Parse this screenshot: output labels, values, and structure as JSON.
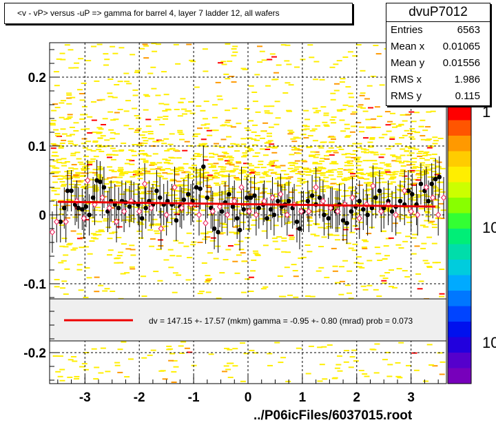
{
  "title_text": "<v - vP>       versus  -uP =>  gamma for barrel 4, layer 7 ladder 12, all wafers",
  "stats": {
    "name": "dvuP7012",
    "rows": [
      {
        "label": "Entries",
        "value": "6563"
      },
      {
        "label": "Mean x",
        "value": "0.01065"
      },
      {
        "label": "Mean y",
        "value": "0.01556"
      },
      {
        "label": "RMS x",
        "value": "1.986"
      },
      {
        "label": "RMS y",
        "value": "0.115"
      }
    ]
  },
  "legend_text": "dv =  147.15 +- 17.57 (mkm) gamma =   -0.95 +-  0.80 (mrad) prob = 0.073",
  "footer": "../P06icFiles/6037015.root",
  "palette_labels": [
    "1",
    "10",
    "10"
  ],
  "colors": {
    "fit_line": "#ee0000",
    "open_marker": "#ee3366",
    "fill_yellow": "#ffee00",
    "fill_orange": "#ff9900",
    "fill_red": "#ff0000"
  },
  "chart_data": {
    "type": "scatter",
    "xlim": [
      -3.65,
      3.65
    ],
    "ylim": [
      -0.245,
      0.25
    ],
    "xticks": [
      -3,
      -2,
      -1,
      0,
      1,
      2,
      3
    ],
    "yticks": [
      -0.2,
      -0.1,
      0,
      0.1,
      0.2
    ],
    "xtick_labels": [
      "-3",
      "-2",
      "-1",
      "0",
      "1",
      "2",
      "3"
    ],
    "ytick_labels": [
      "-0.2",
      "-0.1",
      "0",
      "0.1",
      "0.2"
    ],
    "grid": true,
    "fit_line": {
      "x": [
        -3.5,
        3.45
      ],
      "y": [
        0.019,
        0.012
      ]
    },
    "series": [
      {
        "marker": "filled-circle",
        "points": [
          [
            -3.45,
            -0.01,
            0.03
          ],
          [
            -3.38,
            0.01,
            0.03
          ],
          [
            -3.32,
            0.035,
            0.03
          ],
          [
            -3.25,
            0.035,
            0.03
          ],
          [
            -3.18,
            0.015,
            0.03
          ],
          [
            -3.12,
            0.01,
            0.03
          ],
          [
            -3.05,
            0.008,
            0.03
          ],
          [
            -2.98,
            0.012,
            0.03
          ],
          [
            -2.92,
            0.0,
            0.03
          ],
          [
            -2.85,
            0.025,
            0.03
          ],
          [
            -2.78,
            0.05,
            0.03
          ],
          [
            -2.72,
            0.048,
            0.03
          ],
          [
            -2.65,
            0.04,
            0.03
          ],
          [
            -2.58,
            0.005,
            0.03
          ],
          [
            -2.52,
            0.02,
            0.03
          ],
          [
            -2.45,
            0.015,
            0.03
          ],
          [
            -2.38,
            0.01,
            0.03
          ],
          [
            -2.32,
            0.02,
            0.03
          ],
          [
            -2.25,
            0.018,
            0.03
          ],
          [
            -2.18,
            0.012,
            0.03
          ],
          [
            -2.1,
            0.018,
            0.03
          ],
          [
            -2.02,
            0.015,
            0.03
          ],
          [
            -1.95,
            -0.005,
            0.03
          ],
          [
            -1.88,
            0.01,
            0.03
          ],
          [
            -1.82,
            0.02,
            0.03
          ],
          [
            -1.75,
            0.015,
            0.03
          ],
          [
            -1.68,
            0.035,
            0.03
          ],
          [
            -1.62,
            0.025,
            0.03
          ],
          [
            -1.55,
            0.015,
            0.03
          ],
          [
            -1.48,
            0.02,
            0.03
          ],
          [
            -1.4,
            0.015,
            0.03
          ],
          [
            -1.32,
            -0.008,
            0.03
          ],
          [
            -1.25,
            0.012,
            0.03
          ],
          [
            -1.18,
            0.022,
            0.03
          ],
          [
            -1.1,
            0.03,
            0.03
          ],
          [
            -1.02,
            0.02,
            0.03
          ],
          [
            -0.95,
            0.04,
            0.03
          ],
          [
            -0.88,
            0.038,
            0.03
          ],
          [
            -0.82,
            0.07,
            0.03
          ],
          [
            -0.75,
            0.025,
            0.03
          ],
          [
            -0.68,
            0.01,
            0.03
          ],
          [
            -0.62,
            -0.02,
            0.03
          ],
          [
            -0.55,
            -0.025,
            0.03
          ],
          [
            -0.48,
            0.005,
            0.03
          ],
          [
            -0.42,
            0.018,
            0.03
          ],
          [
            -0.35,
            0.03,
            0.03
          ],
          [
            -0.28,
            0.012,
            0.03
          ],
          [
            -0.2,
            -0.005,
            0.03
          ],
          [
            -0.15,
            -0.022,
            0.03
          ],
          [
            -0.08,
            0.008,
            0.03
          ],
          [
            -0.02,
            0.025,
            0.03
          ],
          [
            0.05,
            0.025,
            0.03
          ],
          [
            0.12,
            0.028,
            0.03
          ],
          [
            0.2,
            0.01,
            0.03
          ],
          [
            0.28,
            0.015,
            0.03
          ],
          [
            0.35,
            -0.005,
            0.03
          ],
          [
            0.42,
            0.008,
            0.03
          ],
          [
            0.48,
            0.0,
            0.03
          ],
          [
            0.55,
            0.02,
            0.03
          ],
          [
            0.62,
            0.012,
            0.03
          ],
          [
            0.68,
            0.015,
            0.03
          ],
          [
            0.75,
            0.02,
            0.03
          ],
          [
            0.82,
            0.01,
            0.03
          ],
          [
            0.9,
            -0.01,
            0.03
          ],
          [
            0.95,
            -0.02,
            0.03
          ],
          [
            1.02,
            0.005,
            0.03
          ],
          [
            1.1,
            0.02,
            0.03
          ],
          [
            1.18,
            0.028,
            0.03
          ],
          [
            1.25,
            0.015,
            0.03
          ],
          [
            1.32,
            0.025,
            0.03
          ],
          [
            1.4,
            0.0,
            0.03
          ],
          [
            1.48,
            -0.005,
            0.03
          ],
          [
            1.55,
            0.01,
            0.03
          ],
          [
            1.62,
            0.005,
            0.03
          ],
          [
            1.68,
            0.015,
            0.03
          ],
          [
            1.75,
            -0.008,
            0.03
          ],
          [
            1.82,
            -0.012,
            0.03
          ],
          [
            1.9,
            0.005,
            0.03
          ],
          [
            1.98,
            0.012,
            0.03
          ],
          [
            2.05,
            0.02,
            0.03
          ],
          [
            2.12,
            0.008,
            0.03
          ],
          [
            2.2,
            0.0,
            0.03
          ],
          [
            2.28,
            0.01,
            0.03
          ],
          [
            2.35,
            0.025,
            0.03
          ],
          [
            2.42,
            0.035,
            0.03
          ],
          [
            2.5,
            0.01,
            0.03
          ],
          [
            2.58,
            0.02,
            0.03
          ],
          [
            2.65,
            0.005,
            0.03
          ],
          [
            2.72,
            0.012,
            0.03
          ],
          [
            2.8,
            0.02,
            0.03
          ],
          [
            2.88,
            0.015,
            0.03
          ],
          [
            2.95,
            0.035,
            0.03
          ],
          [
            3.02,
            0.03,
            0.03
          ],
          [
            3.1,
            0.015,
            0.03
          ],
          [
            3.18,
            0.045,
            0.03
          ],
          [
            3.25,
            0.035,
            0.03
          ],
          [
            3.32,
            0.02,
            0.03
          ],
          [
            3.38,
            0.045,
            0.03
          ],
          [
            3.45,
            0.052,
            0.03
          ],
          [
            3.52,
            0.055,
            0.03
          ]
        ]
      },
      {
        "marker": "open-diamond",
        "points": [
          [
            -3.6,
            -0.025,
            0.03
          ],
          [
            -3.52,
            -0.01,
            0.03
          ],
          [
            -3.35,
            -0.01,
            0.03
          ],
          [
            -3.15,
            0.02,
            0.03
          ],
          [
            -3.02,
            -0.005,
            0.03
          ],
          [
            -2.95,
            0.05,
            0.03
          ],
          [
            -2.82,
            0.015,
            0.03
          ],
          [
            -2.68,
            0.025,
            0.03
          ],
          [
            -2.55,
            0.01,
            0.03
          ],
          [
            -2.42,
            -0.01,
            0.03
          ],
          [
            -2.28,
            0.005,
            0.03
          ],
          [
            -2.15,
            0.02,
            0.03
          ],
          [
            -2.0,
            0.005,
            0.03
          ],
          [
            -1.9,
            0.045,
            0.03
          ],
          [
            -1.78,
            0.01,
            0.03
          ],
          [
            -1.6,
            -0.02,
            0.03
          ],
          [
            -1.5,
            0.0,
            0.03
          ],
          [
            -1.35,
            0.04,
            0.03
          ],
          [
            -1.22,
            0.01,
            0.03
          ],
          [
            -1.05,
            0.015,
            0.03
          ],
          [
            -0.9,
            0.0,
            0.03
          ],
          [
            -0.78,
            -0.012,
            0.03
          ],
          [
            -0.65,
            0.005,
            0.03
          ],
          [
            -0.52,
            0.012,
            0.03
          ],
          [
            -0.38,
            0.0,
            0.03
          ],
          [
            -0.25,
            0.02,
            0.03
          ],
          [
            -0.12,
            0.04,
            0.03
          ],
          [
            0.02,
            0.005,
            0.03
          ],
          [
            0.15,
            0.0,
            0.03
          ],
          [
            0.3,
            0.02,
            0.03
          ],
          [
            0.45,
            0.025,
            0.03
          ],
          [
            0.6,
            0.03,
            0.03
          ],
          [
            0.72,
            0.0,
            0.03
          ],
          [
            0.85,
            0.015,
            0.03
          ],
          [
            0.98,
            0.005,
            0.03
          ],
          [
            1.12,
            0.005,
            0.03
          ],
          [
            1.25,
            0.04,
            0.03
          ],
          [
            1.38,
            0.02,
            0.03
          ],
          [
            1.52,
            0.01,
            0.03
          ],
          [
            1.65,
            0.005,
            0.03
          ],
          [
            1.78,
            0.015,
            0.03
          ],
          [
            1.92,
            0.025,
            0.03
          ],
          [
            2.05,
            -0.005,
            0.03
          ],
          [
            2.18,
            0.015,
            0.03
          ],
          [
            2.3,
            0.042,
            0.03
          ],
          [
            2.45,
            0.005,
            0.03
          ],
          [
            2.58,
            0.015,
            0.03
          ],
          [
            2.72,
            0.0,
            0.03
          ],
          [
            2.88,
            0.035,
            0.03
          ],
          [
            3.0,
            0.005,
            0.03
          ],
          [
            3.12,
            0.0,
            0.03
          ],
          [
            3.28,
            0.04,
            0.03
          ],
          [
            3.4,
            0.025,
            0.03
          ],
          [
            3.5,
            0.0,
            0.03
          ],
          [
            3.6,
            0.025,
            0.03
          ]
        ]
      }
    ]
  }
}
